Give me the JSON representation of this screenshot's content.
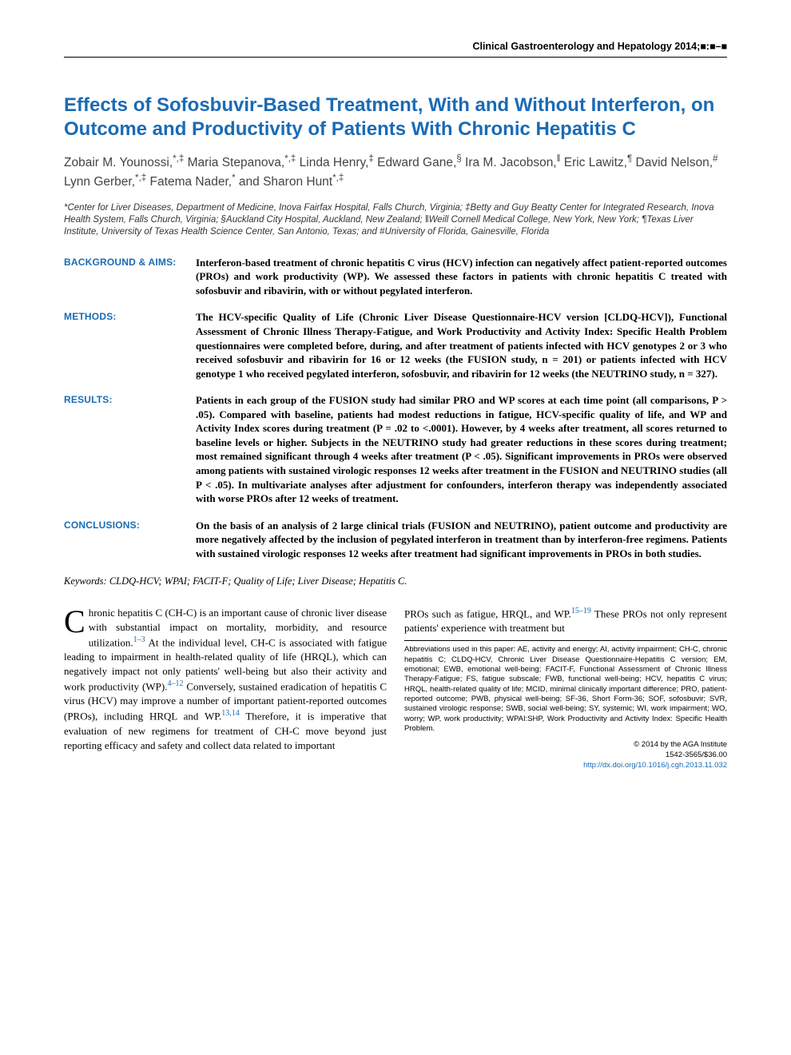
{
  "journal_header": "Clinical Gastroenterology and Hepatology 2014;■:■–■",
  "title": "Effects of Sofosbuvir-Based Treatment, With and Without Interferon, on Outcome and Productivity of Patients With Chronic Hepatitis C",
  "authors": "Zobair M. Younossi,*,‡ Maria Stepanova,*,‡ Linda Henry,‡ Edward Gane,§ Ira M. Jacobson,‖ Eric Lawitz,¶ David Nelson,# Lynn Gerber,*,‡ Fatema Nader,* and Sharon Hunt*,‡",
  "affiliations": "*Center for Liver Diseases, Department of Medicine, Inova Fairfax Hospital, Falls Church, Virginia; ‡Betty and Guy Beatty Center for Integrated Research, Inova Health System, Falls Church, Virginia; §Auckland City Hospital, Auckland, New Zealand; ‖Weill Cornell Medical College, New York, New York; ¶Texas Liver Institute, University of Texas Health Science Center, San Antonio, Texas; and #University of Florida, Gainesville, Florida",
  "abstract": {
    "sections": [
      {
        "label": "BACKGROUND & AIMS:",
        "text": "Interferon-based treatment of chronic hepatitis C virus (HCV) infection can negatively affect patient-reported outcomes (PROs) and work productivity (WP). We assessed these factors in patients with chronic hepatitis C treated with sofosbuvir and ribavirin, with or without pegylated interferon."
      },
      {
        "label": "METHODS:",
        "text": "The HCV-specific Quality of Life (Chronic Liver Disease Questionnaire-HCV version [CLDQ-HCV]), Functional Assessment of Chronic Illness Therapy-Fatigue, and Work Productivity and Activity Index: Specific Health Problem questionnaires were completed before, during, and after treatment of patients infected with HCV genotypes 2 or 3 who received sofosbuvir and ribavirin for 16 or 12 weeks (the FUSION study, n = 201) or patients infected with HCV genotype 1 who received pegylated interferon, sofosbuvir, and ribavirin for 12 weeks (the NEUTRINO study, n = 327)."
      },
      {
        "label": "RESULTS:",
        "text": "Patients in each group of the FUSION study had similar PRO and WP scores at each time point (all comparisons, P > .05). Compared with baseline, patients had modest reductions in fatigue, HCV-specific quality of life, and WP and Activity Index scores during treatment (P = .02 to <.0001). However, by 4 weeks after treatment, all scores returned to baseline levels or higher. Subjects in the NEUTRINO study had greater reductions in these scores during treatment; most remained significant through 4 weeks after treatment (P < .05). Significant improvements in PROs were observed among patients with sustained virologic responses 12 weeks after treatment in the FUSION and NEUTRINO studies (all P < .05). In multivariate analyses after adjustment for confounders, interferon therapy was independently associated with worse PROs after 12 weeks of treatment."
      },
      {
        "label": "CONCLUSIONS:",
        "text": "On the basis of an analysis of 2 large clinical trials (FUSION and NEUTRINO), patient outcome and productivity are more negatively affected by the inclusion of pegylated interferon in treatment than by interferon-free regimens. Patients with sustained virologic responses 12 weeks after treatment had significant improvements in PROs in both studies."
      }
    ]
  },
  "keywords_label": "Keywords:",
  "keywords": "CLDQ-HCV; WPAI; FACIT-F; Quality of Life; Liver Disease; Hepatitis C.",
  "body": {
    "left_dropcap": "C",
    "left_para": "hronic hepatitis C (CH-C) is an important cause of chronic liver disease with substantial impact on mortality, morbidity, and resource utilization.",
    "left_ref1": "1–3",
    "left_para2": " At the individual level, CH-C is associated with fatigue leading to impairment in health-related quality of life (HRQL), which can negatively impact not only patients' well-being but also their activity and work productivity (WP).",
    "left_ref2": "4–12",
    "left_para3": " Conversely, sustained eradication of hepatitis C virus (HCV) may improve a number of important patient-reported outcomes (PROs), including HRQL and WP.",
    "left_ref3": "13,14",
    "left_para4": " Therefore, it is imperative that evaluation of new regimens for treatment of CH-C move beyond just reporting efficacy and safety and collect data related to important",
    "right_para": "PROs such as fatigue, HRQL, and WP.",
    "right_ref1": "15–19",
    "right_para2": " These PROs not only represent patients' experience with treatment but"
  },
  "abbreviations": "Abbreviations used in this paper: AE, activity and energy; AI, activity impairment; CH-C, chronic hepatitis C; CLDQ-HCV, Chronic Liver Disease Questionnaire-Hepatitis C version; EM, emotional; EWB, emotional well-being; FACIT-F, Functional Assessment of Chronic Illness Therapy-Fatigue; FS, fatigue subscale; FWB, functional well-being; HCV, hepatitis C virus; HRQL, health-related quality of life; MCID, minimal clinically important difference; PRO, patient-reported outcome; PWB, physical well-being; SF-36, Short Form-36; SOF, sofosbuvir; SVR, sustained virologic response; SWB, social well-being; SY, systemic; WI, work impairment; WO, worry; WP, work productivity; WPAI:SHP, Work Productivity and Activity Index: Specific Health Problem.",
  "copyright_line1": "© 2014 by the AGA Institute",
  "copyright_line2": "1542-3565/$36.00",
  "doi": "http://dx.doi.org/10.1016/j.cgh.2013.11.032",
  "colors": {
    "accent": "#1a6bb5",
    "text": "#000000",
    "author_gray": "#444444"
  }
}
